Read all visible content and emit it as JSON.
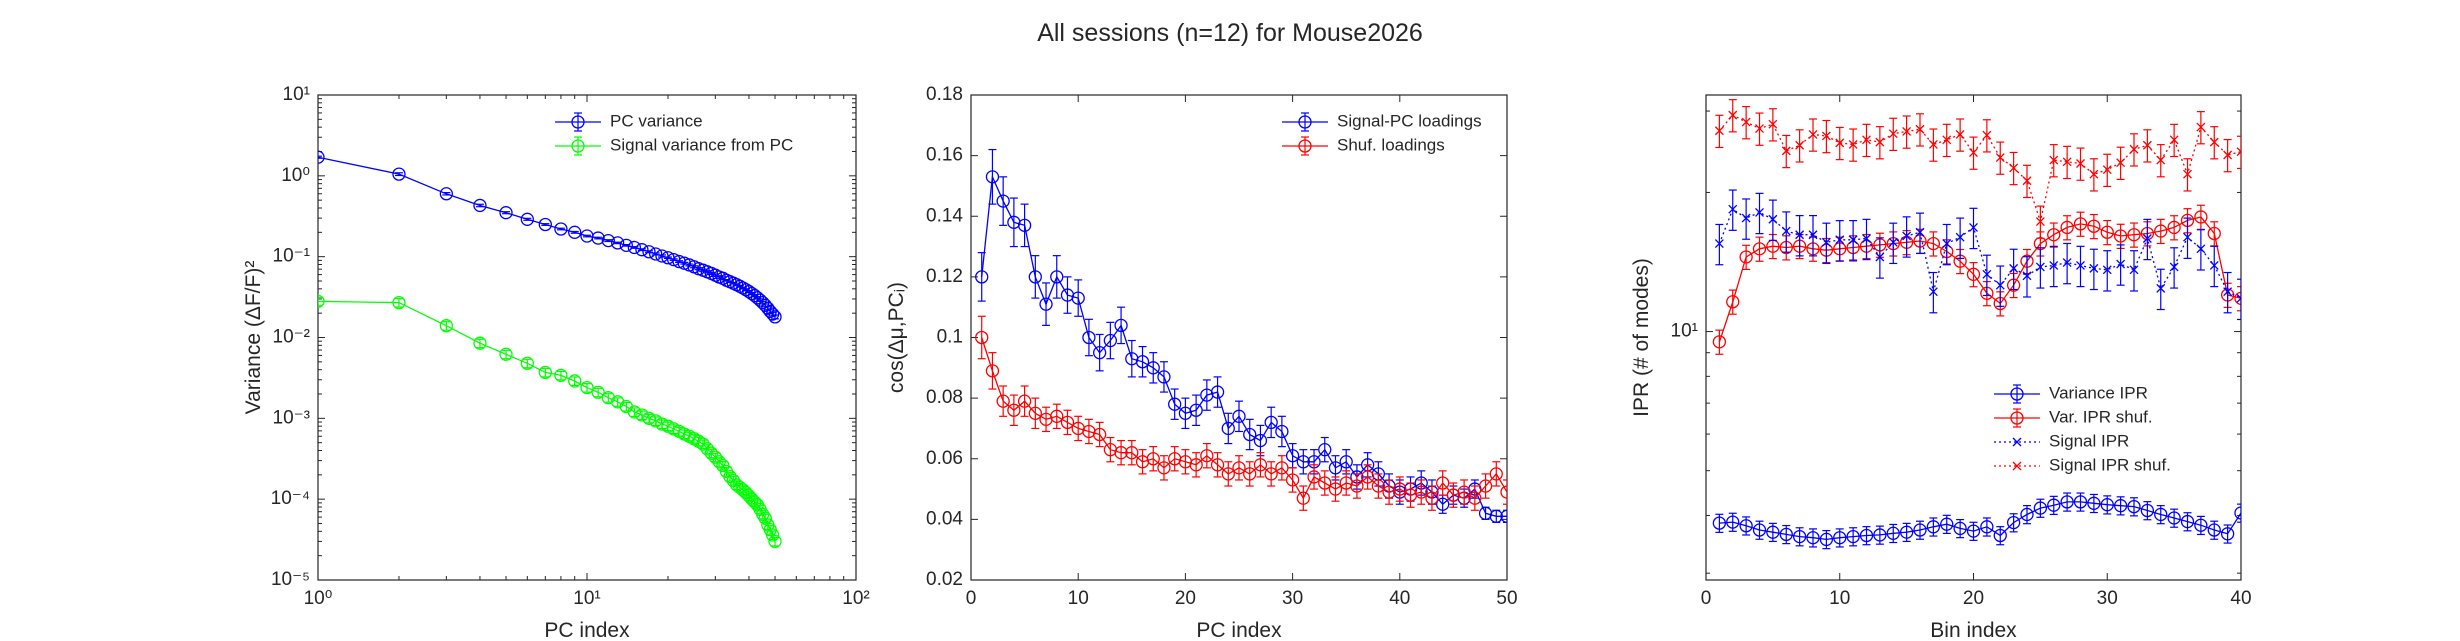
{
  "figure": {
    "title": "All sessions (n=12) for Mouse2026"
  },
  "colors": {
    "blue": "#0000ff",
    "green": "#00ff00",
    "red": "#ff0000",
    "axis": "#262626"
  },
  "chart_data": [
    {
      "type": "line",
      "xscale": "log",
      "yscale": "log",
      "xlabel": "PC index",
      "ylabel": "Variance (ΔF/F)²",
      "xlim": [
        1,
        100
      ],
      "ylim": [
        1e-05,
        10
      ],
      "xticks": [
        1,
        10,
        100
      ],
      "xtick_labels": [
        "10⁰",
        "10¹",
        "10²"
      ],
      "yticks": [
        1e-05,
        0.0001,
        0.001,
        0.01,
        0.1,
        1,
        10
      ],
      "ytick_labels": [
        "10⁻⁵",
        "10⁻⁴",
        "10⁻³",
        "10⁻²",
        "10⁻¹",
        "10⁰",
        "10¹"
      ],
      "legend_position": "top-right",
      "series": [
        {
          "name": "PC variance",
          "color": "#0000ff",
          "marker": "o",
          "linestyle": "solid",
          "x": [
            1,
            2,
            3,
            4,
            5,
            6,
            7,
            8,
            9,
            10,
            11,
            12,
            13,
            14,
            15,
            16,
            17,
            18,
            19,
            20,
            21,
            22,
            23,
            24,
            25,
            26,
            27,
            28,
            29,
            30,
            31,
            32,
            33,
            34,
            35,
            36,
            37,
            38,
            39,
            40,
            41,
            42,
            43,
            44,
            45,
            46,
            47,
            48,
            49,
            50
          ],
          "y": [
            1.7,
            1.05,
            0.6,
            0.43,
            0.35,
            0.29,
            0.25,
            0.22,
            0.2,
            0.18,
            0.17,
            0.158,
            0.148,
            0.138,
            0.13,
            0.122,
            0.115,
            0.108,
            0.102,
            0.097,
            0.092,
            0.087,
            0.083,
            0.079,
            0.075,
            0.071,
            0.068,
            0.065,
            0.062,
            0.059,
            0.056,
            0.054,
            0.051,
            0.049,
            0.047,
            0.045,
            0.043,
            0.041,
            0.039,
            0.037,
            0.035,
            0.033,
            0.031,
            0.029,
            0.027,
            0.025,
            0.023,
            0.021,
            0.0195,
            0.018
          ],
          "err": [
            0.05,
            0.04,
            0.02,
            0.015,
            0.01,
            0.008,
            0.006,
            0.005,
            0.005,
            0.004,
            0.004,
            0.004,
            0.003,
            0.003,
            0.003,
            0.003,
            0.003,
            0.003,
            0.003,
            0.002,
            0.002,
            0.002,
            0.002,
            0.002,
            0.002,
            0.002,
            0.002,
            0.002,
            0.002,
            0.002,
            0.002,
            0.002,
            0.001,
            0.001,
            0.001,
            0.001,
            0.001,
            0.001,
            0.001,
            0.001,
            0.001,
            0.001,
            0.001,
            0.001,
            0.001,
            0.001,
            0.001,
            0.001,
            0.001,
            0.001
          ]
        },
        {
          "name": "Signal variance from PC",
          "color": "#00ff00",
          "marker": "o",
          "linestyle": "solid",
          "x": [
            1,
            2,
            3,
            4,
            5,
            6,
            7,
            8,
            9,
            10,
            11,
            12,
            13,
            14,
            15,
            16,
            17,
            18,
            19,
            20,
            21,
            22,
            23,
            24,
            25,
            26,
            27,
            28,
            29,
            30,
            31,
            32,
            33,
            34,
            35,
            36,
            37,
            38,
            39,
            40,
            41,
            42,
            43,
            44,
            45,
            46,
            47,
            48,
            49,
            50
          ],
          "y": [
            0.028,
            0.027,
            0.014,
            0.0085,
            0.0062,
            0.0048,
            0.0037,
            0.0034,
            0.0029,
            0.0024,
            0.0021,
            0.0018,
            0.0016,
            0.0014,
            0.0012,
            0.0011,
            0.001,
            0.00093,
            0.00085,
            0.0008,
            0.00074,
            0.00069,
            0.00064,
            0.0006,
            0.00056,
            0.00052,
            0.00048,
            0.00042,
            0.00037,
            0.00033,
            0.00029,
            0.00026,
            0.00022,
            0.00019,
            0.00017,
            0.00015,
            0.00014,
            0.00013,
            0.00012,
            0.00011,
            0.0001,
            9.2e-05,
            8.5e-05,
            7.5e-05,
            6.5e-05,
            5.8e-05,
            4.8e-05,
            4.2e-05,
            3.6e-05,
            3e-05
          ],
          "err_frac": 0.12
        }
      ]
    },
    {
      "type": "line",
      "xlabel": "PC index",
      "ylabel": "cos(Δμ,PCᵢ)",
      "xlim": [
        0,
        50
      ],
      "ylim": [
        0.02,
        0.18
      ],
      "xticks": [
        0,
        10,
        20,
        30,
        40,
        50
      ],
      "yticks": [
        0.02,
        0.04,
        0.06,
        0.08,
        0.1,
        0.12,
        0.14,
        0.16,
        0.18
      ],
      "ytick_labels": [
        "0.02",
        "0.04",
        "0.06",
        "0.08",
        "0.1",
        "0.12",
        "0.14",
        "0.16",
        "0.18"
      ],
      "legend_position": "top-right",
      "series": [
        {
          "name": "Signal-PC loadings",
          "color": "#0000ff",
          "marker": "o",
          "linestyle": "solid",
          "x": [
            1,
            2,
            3,
            4,
            5,
            6,
            7,
            8,
            9,
            10,
            11,
            12,
            13,
            14,
            15,
            16,
            17,
            18,
            19,
            20,
            21,
            22,
            23,
            24,
            25,
            26,
            27,
            28,
            29,
            30,
            31,
            32,
            33,
            34,
            35,
            36,
            37,
            38,
            39,
            40,
            41,
            42,
            43,
            44,
            45,
            46,
            47,
            48,
            49,
            50
          ],
          "y": [
            0.12,
            0.153,
            0.145,
            0.138,
            0.137,
            0.12,
            0.111,
            0.12,
            0.114,
            0.113,
            0.1,
            0.095,
            0.099,
            0.104,
            0.093,
            0.092,
            0.09,
            0.087,
            0.078,
            0.075,
            0.076,
            0.081,
            0.082,
            0.07,
            0.074,
            0.068,
            0.066,
            0.072,
            0.069,
            0.061,
            0.059,
            0.059,
            0.063,
            0.057,
            0.059,
            0.054,
            0.058,
            0.055,
            0.051,
            0.049,
            0.05,
            0.052,
            0.049,
            0.045,
            0.048,
            0.047,
            0.05,
            0.042,
            0.041,
            0.041
          ],
          "err": [
            0.008,
            0.009,
            0.008,
            0.008,
            0.007,
            0.007,
            0.007,
            0.007,
            0.006,
            0.006,
            0.006,
            0.006,
            0.006,
            0.006,
            0.006,
            0.005,
            0.005,
            0.005,
            0.005,
            0.005,
            0.005,
            0.005,
            0.005,
            0.005,
            0.005,
            0.005,
            0.005,
            0.005,
            0.005,
            0.004,
            0.004,
            0.004,
            0.004,
            0.004,
            0.004,
            0.004,
            0.004,
            0.004,
            0.004,
            0.004,
            0.004,
            0.004,
            0.004,
            0.003,
            0.003,
            0.003,
            0.003,
            0.002,
            0.002,
            0.002
          ]
        },
        {
          "name": "Shuf. loadings",
          "color": "#ff0000",
          "marker": "o",
          "linestyle": "solid",
          "x": [
            1,
            2,
            3,
            4,
            5,
            6,
            7,
            8,
            9,
            10,
            11,
            12,
            13,
            14,
            15,
            16,
            17,
            18,
            19,
            20,
            21,
            22,
            23,
            24,
            25,
            26,
            27,
            28,
            29,
            30,
            31,
            32,
            33,
            34,
            35,
            36,
            37,
            38,
            39,
            40,
            41,
            42,
            43,
            44,
            45,
            46,
            47,
            48,
            49,
            50
          ],
          "y": [
            0.1,
            0.089,
            0.079,
            0.076,
            0.079,
            0.075,
            0.073,
            0.074,
            0.072,
            0.07,
            0.069,
            0.068,
            0.063,
            0.062,
            0.062,
            0.059,
            0.06,
            0.057,
            0.06,
            0.059,
            0.058,
            0.061,
            0.058,
            0.055,
            0.057,
            0.055,
            0.058,
            0.055,
            0.057,
            0.053,
            0.047,
            0.054,
            0.052,
            0.05,
            0.052,
            0.051,
            0.054,
            0.051,
            0.049,
            0.05,
            0.048,
            0.049,
            0.047,
            0.052,
            0.048,
            0.049,
            0.047,
            0.051,
            0.055,
            0.049
          ],
          "err": [
            0.007,
            0.006,
            0.005,
            0.005,
            0.005,
            0.005,
            0.004,
            0.004,
            0.004,
            0.004,
            0.004,
            0.004,
            0.004,
            0.004,
            0.004,
            0.004,
            0.004,
            0.004,
            0.004,
            0.004,
            0.004,
            0.004,
            0.004,
            0.004,
            0.004,
            0.004,
            0.004,
            0.004,
            0.004,
            0.004,
            0.004,
            0.004,
            0.004,
            0.004,
            0.004,
            0.004,
            0.004,
            0.004,
            0.004,
            0.004,
            0.004,
            0.004,
            0.004,
            0.004,
            0.004,
            0.004,
            0.004,
            0.004,
            0.004,
            0.004
          ]
        }
      ]
    },
    {
      "type": "line",
      "yscale": "log",
      "xlabel": "Bin index",
      "ylabel": "IPR (# of modes)",
      "xlim": [
        0,
        40
      ],
      "ylim": [
        2.9,
        32.5
      ],
      "xticks": [
        0,
        10,
        20,
        30,
        40
      ],
      "yticks": [
        10
      ],
      "ytick_labels": [
        "10¹"
      ],
      "legend_position": "bottom-right",
      "series": [
        {
          "name": "Variance IPR",
          "color": "#0000ff",
          "marker": "o",
          "linestyle": "solid",
          "x": [
            1,
            2,
            3,
            4,
            5,
            6,
            7,
            8,
            9,
            10,
            11,
            12,
            13,
            14,
            15,
            16,
            17,
            18,
            19,
            20,
            21,
            22,
            23,
            24,
            25,
            26,
            27,
            28,
            29,
            30,
            31,
            32,
            33,
            34,
            35,
            36,
            37,
            38,
            39,
            40
          ],
          "y": [
            3.85,
            3.87,
            3.8,
            3.72,
            3.68,
            3.64,
            3.6,
            3.58,
            3.55,
            3.58,
            3.6,
            3.62,
            3.63,
            3.66,
            3.68,
            3.72,
            3.78,
            3.83,
            3.75,
            3.7,
            3.78,
            3.62,
            3.86,
            4.02,
            4.15,
            4.21,
            4.28,
            4.28,
            4.25,
            4.22,
            4.2,
            4.18,
            4.1,
            4.02,
            3.95,
            3.88,
            3.81,
            3.72,
            3.65,
            4.05
          ],
          "err_frac": 0.045
        },
        {
          "name": "Var. IPR shuf.",
          "color": "#ff0000",
          "marker": "o",
          "linestyle": "solid",
          "x": [
            1,
            2,
            3,
            4,
            5,
            6,
            7,
            8,
            9,
            10,
            11,
            12,
            13,
            14,
            15,
            16,
            17,
            18,
            19,
            20,
            21,
            22,
            23,
            24,
            25,
            26,
            27,
            28,
            29,
            30,
            31,
            32,
            33,
            34,
            35,
            36,
            37,
            38,
            39,
            40
          ],
          "y": [
            9.5,
            11.6,
            14.5,
            15.1,
            15.3,
            15.2,
            15.3,
            15.1,
            15,
            15.1,
            15.2,
            15.3,
            15.4,
            15.5,
            15.6,
            15.7,
            15.5,
            14.9,
            14.2,
            13.3,
            12.1,
            11.5,
            12.6,
            14.2,
            15.5,
            16.2,
            16.8,
            17.1,
            16.9,
            16.4,
            16.1,
            16.2,
            16.3,
            16.5,
            16.8,
            17.4,
            17.7,
            16.3,
            12,
            11.8
          ],
          "err_frac": 0.06
        },
        {
          "name": "Signal IPR",
          "color": "#0000ff",
          "marker": "x",
          "linestyle": "dotted",
          "x": [
            1,
            2,
            3,
            4,
            5,
            6,
            7,
            8,
            9,
            10,
            11,
            12,
            13,
            14,
            15,
            16,
            17,
            18,
            19,
            20,
            21,
            22,
            23,
            24,
            25,
            26,
            27,
            28,
            29,
            30,
            31,
            32,
            33,
            34,
            35,
            36,
            37,
            38,
            39,
            40
          ],
          "y": [
            15.5,
            18.4,
            17.6,
            18.1,
            17.5,
            16.5,
            16.2,
            16.2,
            15.6,
            15.8,
            15.8,
            15.9,
            14.5,
            15.6,
            16.1,
            16.4,
            12.2,
            15.5,
            16,
            16.8,
            13.3,
            12.6,
            13.7,
            13.2,
            13.8,
            13.9,
            14.1,
            13.9,
            13.7,
            13.6,
            14,
            13.6,
            15.9,
            12.4,
            13.8,
            16,
            15.1,
            13.9,
            12.2,
            11.8
          ],
          "err_frac": 0.1
        },
        {
          "name": "Signal IPR shuf.",
          "color": "#ff0000",
          "marker": "x",
          "linestyle": "dotted",
          "x": [
            1,
            2,
            3,
            4,
            5,
            6,
            7,
            8,
            9,
            10,
            11,
            12,
            13,
            14,
            15,
            16,
            17,
            18,
            19,
            20,
            21,
            22,
            23,
            24,
            25,
            26,
            27,
            28,
            29,
            30,
            31,
            32,
            33,
            34,
            35,
            36,
            37,
            38,
            39,
            40
          ],
          "y": [
            27.2,
            29.4,
            28.4,
            27.5,
            28.1,
            24.6,
            25.3,
            26.7,
            26.5,
            25.6,
            25.4,
            26,
            25.7,
            26.8,
            27.1,
            27.4,
            25.4,
            26,
            26.7,
            24.4,
            26.6,
            23.8,
            22.6,
            21.2,
            17.3,
            23.5,
            23.3,
            23.1,
            21.9,
            22.4,
            23.2,
            24.8,
            25.3,
            23.5,
            26,
            21.9,
            27.7,
            25.7,
            24.1,
            24.5
          ],
          "err_frac": 0.08
        }
      ]
    }
  ]
}
